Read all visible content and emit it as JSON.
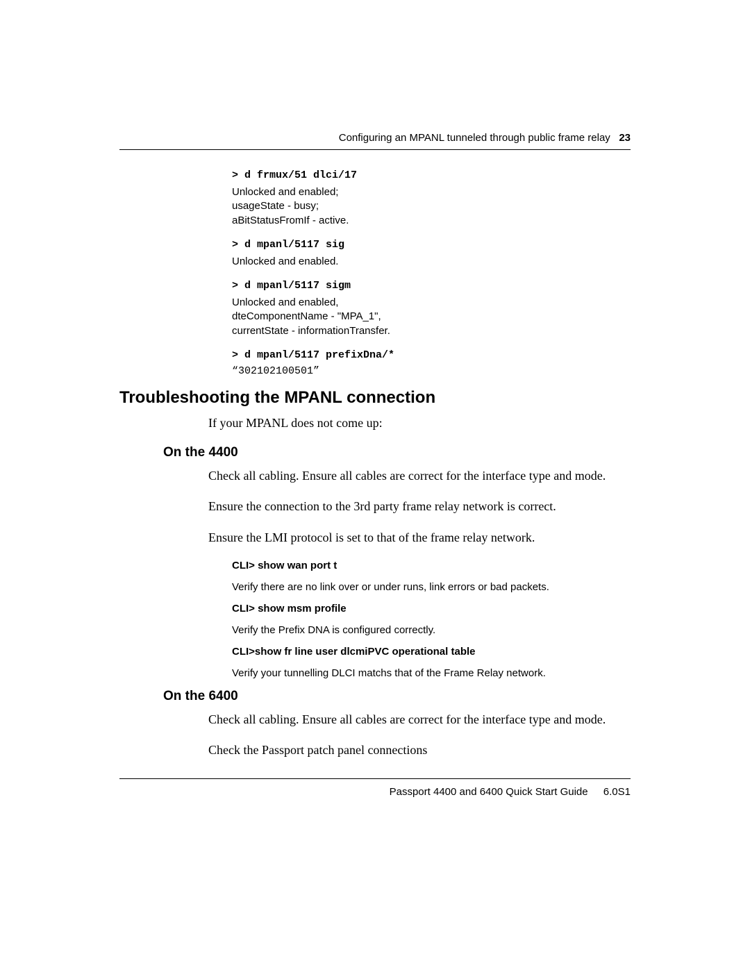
{
  "header": {
    "section_title": "Configuring an MPANL tunneled through public frame relay",
    "page_number": "23"
  },
  "commands": {
    "c1": {
      "cmd": "> d frmux/51 dlci/17",
      "out1": "Unlocked and enabled;",
      "out2": "usageState -  busy;",
      "out3": "aBitStatusFromIf -  active."
    },
    "c2": {
      "cmd": "> d mpanl/5117 sig",
      "out1": "Unlocked and enabled."
    },
    "c3": {
      "cmd": "> d mpanl/5117 sigm",
      "out1": "Unlocked and enabled,",
      "out2": "dteComponentName - \"MPA_1\",",
      "out3": "currentState - informationTransfer."
    },
    "c4": {
      "cmd": "> d mpanl/5117 prefixDna/*",
      "out1": "“302102100501”"
    }
  },
  "heading1": "Troubleshooting the MPANL connection",
  "intro": "If your MPANL does not come up:",
  "sec4400": {
    "title": "On the 4400",
    "p1": "Check all cabling. Ensure all cables are correct for the interface type and mode.",
    "p2": "Ensure the connection to the 3rd party frame relay network is correct.",
    "p3": "Ensure the LMI protocol is set to that of the frame relay network.",
    "cli1": "CLI> show wan port t",
    "cli1_desc": "Verify there are no link over or under runs, link errors or bad packets.",
    "cli2": "CLI> show msm profile",
    "cli2_desc": "Verify the Prefix DNA is configured correctly.",
    "cli3": "CLI>show fr line user dlcmiPVC operational table",
    "cli3_desc": "Verify your tunnelling DLCI matchs that of the Frame Relay network."
  },
  "sec6400": {
    "title": "On the 6400",
    "p1": "Check all cabling. Ensure all cables are correct for the interface type and mode.",
    "p2": "Check the Passport patch panel connections"
  },
  "footer": {
    "guide": "Passport 4400 and 6400 Quick Start Guide",
    "version": "6.0S1"
  }
}
